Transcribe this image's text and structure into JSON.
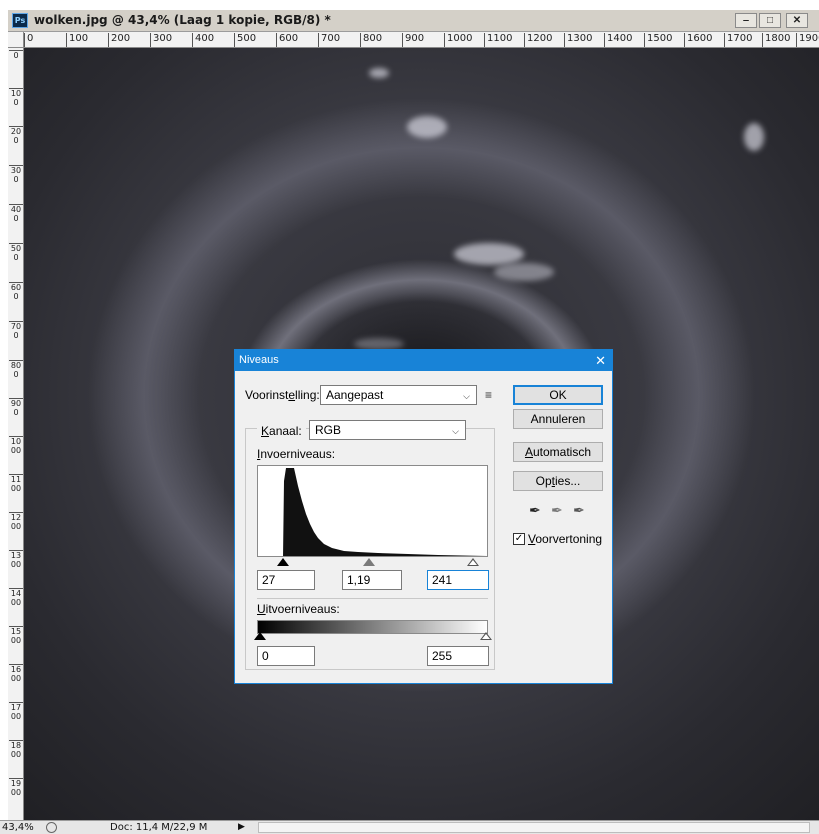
{
  "window": {
    "title": "wolken.jpg @ 43,4% (Laag 1 kopie, RGB/8) *",
    "app_badge": "Ps",
    "minimize_glyph": "‒",
    "maximize_glyph": "□",
    "close_glyph": "✕"
  },
  "ruler": {
    "horizontal": [
      "0",
      "100",
      "200",
      "300",
      "400",
      "500",
      "600",
      "700",
      "800",
      "900",
      "1000",
      "1100",
      "1200",
      "1300",
      "1400",
      "1500",
      "1600",
      "1700",
      "1800",
      "1900"
    ],
    "vertical": [
      "0",
      "100",
      "200",
      "300",
      "400",
      "500",
      "600",
      "700",
      "800",
      "900",
      "1000",
      "1100",
      "1200",
      "1300",
      "1400",
      "1500",
      "1600",
      "1700",
      "1800",
      "1900"
    ]
  },
  "statusbar": {
    "zoom": "43,4%",
    "doc": "Doc: 11,4 M/22,9 M",
    "arrow": "▶"
  },
  "dialog": {
    "title": "Niveaus",
    "close_glyph": "✕",
    "preset_label_pre": "Voorinst",
    "preset_label_u": "e",
    "preset_label_post": "lling:",
    "preset_value": "Aangepast",
    "preset_menu_icon": "≡",
    "channel_label_u": "K",
    "channel_label_post": "anaal:",
    "channel_value": "RGB",
    "input_label_u": "I",
    "input_label_post": "nvoerniveaus:",
    "input_black": "27",
    "input_gamma": "1,19",
    "input_white": "241",
    "output_label_u": "U",
    "output_label_post": "itvoerniveaus:",
    "output_black": "0",
    "output_white": "255",
    "buttons": {
      "ok": "OK",
      "cancel": "Annuleren",
      "auto_pre": "",
      "auto_u": "A",
      "auto_post": "utomatisch",
      "options_pre": "Op",
      "options_u": "t",
      "options_post": "ies..."
    },
    "preview_checked": "✓",
    "preview_label_u": "V",
    "preview_label_post": "oorvertoning",
    "chevron": "⌵",
    "eyedropper": "✒"
  }
}
